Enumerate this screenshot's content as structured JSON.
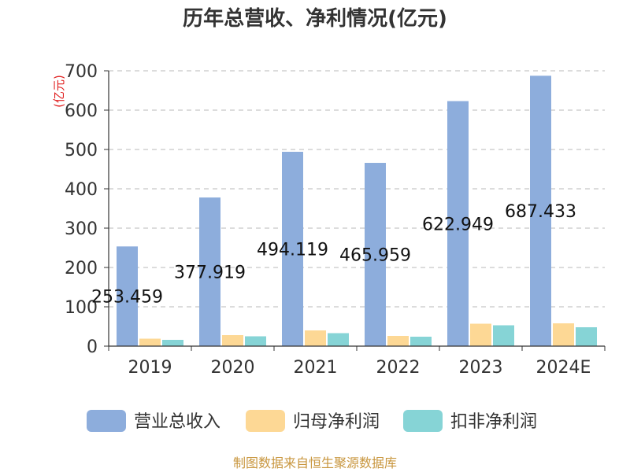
{
  "chart_data": {
    "type": "bar",
    "title": "历年总营收、净利情况(亿元)",
    "ylabel": "(亿元)",
    "xlabel": "",
    "ylim": [
      0,
      700
    ],
    "yticks": [
      0,
      100,
      200,
      300,
      400,
      500,
      600,
      700
    ],
    "grid": true,
    "legend_position": "bottom",
    "categories": [
      "2019",
      "2020",
      "2021",
      "2022",
      "2023",
      "2024E"
    ],
    "series": [
      {
        "name": "营业总收入",
        "color": "#8daddc",
        "values": [
          253.459,
          377.919,
          494.119,
          465.959,
          622.949,
          687.433
        ],
        "labels": [
          "253.459",
          "377.919",
          "494.119",
          "465.959",
          "622.949",
          "687.433"
        ]
      },
      {
        "name": "归母净利润",
        "color": "#fdd895",
        "values": [
          19,
          28,
          40,
          26,
          57,
          58
        ]
      },
      {
        "name": "扣非净利润",
        "color": "#86d4d6",
        "values": [
          16,
          25,
          33,
          24,
          53,
          48
        ]
      }
    ]
  },
  "source": "制图数据来自恒生聚源数据库"
}
